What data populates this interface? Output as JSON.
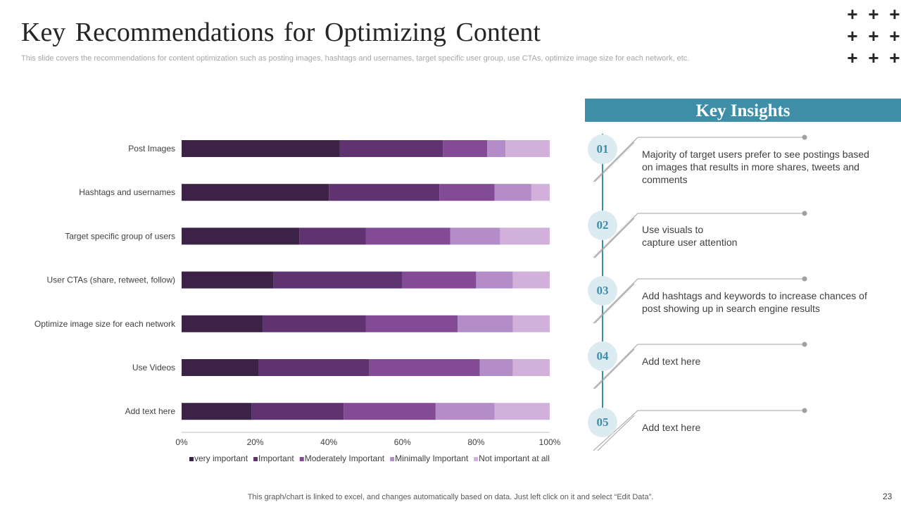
{
  "header": {
    "title": "Key Recommendations for Optimizing Content",
    "subtitle": "This slide covers the recommendations for content optimization such as posting images, hashtags and usernames, target specific user group, use CTAs, optimize image size for each network, etc."
  },
  "decoration": {
    "plus_glyph": "+"
  },
  "colors": {
    "series": [
      "#3d2248",
      "#5f336f",
      "#834b96",
      "#b48cc8",
      "#d1b1db"
    ],
    "accent": "#3f8ea8",
    "circle_bg": "#dcebf2"
  },
  "chart_data": {
    "type": "bar",
    "orientation": "horizontal",
    "stacked": true,
    "categories": [
      "Post Images",
      "Hashtags and usernames",
      "Target specific group of users",
      "User CTAs (share, retweet, follow)",
      "Optimize image size for each network",
      "Use Videos",
      "Add text here"
    ],
    "series": [
      {
        "name": "very important",
        "values": [
          43,
          40,
          32,
          25,
          22,
          21,
          19
        ]
      },
      {
        "name": "Important",
        "values": [
          28,
          30,
          18,
          35,
          28,
          30,
          25
        ]
      },
      {
        "name": "Moderately Important",
        "values": [
          12,
          15,
          23,
          20,
          25,
          30,
          25
        ]
      },
      {
        "name": "Minimally Important",
        "values": [
          5,
          10,
          13.5,
          10,
          15,
          9,
          16
        ]
      },
      {
        "name": "Not important at all",
        "values": [
          12,
          5,
          13.5,
          10,
          10,
          10,
          15
        ]
      }
    ],
    "x_ticks": [
      "0%",
      "20%",
      "40%",
      "60%",
      "80%",
      "100%"
    ],
    "xlim": [
      0,
      100
    ],
    "legend": "bottom",
    "grid": false
  },
  "insights": {
    "title": "Key Insights",
    "items": [
      {
        "number": "01",
        "text": "Majority of target users prefer to see postings based on images that results in more shares, tweets and comments"
      },
      {
        "number": "02",
        "text": "Use visuals to\ncapture user attention"
      },
      {
        "number": "03",
        "text": "Add hashtags and keywords to increase chances of post showing up in search engine results"
      },
      {
        "number": "04",
        "text": "Add text here"
      },
      {
        "number": "05",
        "text": "Add text here"
      }
    ]
  },
  "footer": {
    "note": "This graph/chart is linked to excel, and changes automatically based on data. Just left click on it and select “Edit Data”.",
    "page_number": "23"
  }
}
